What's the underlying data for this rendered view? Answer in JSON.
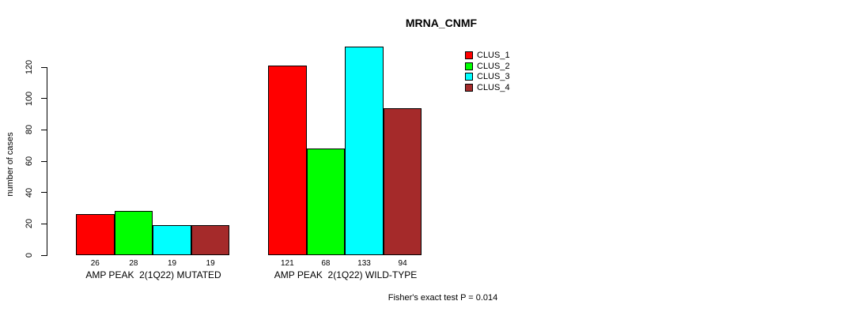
{
  "chart_data": {
    "type": "bar",
    "title": "MRNA_CNMF",
    "ylabel": "number of cases",
    "xlabel": "",
    "categories": [
      "AMP PEAK  2(1Q22) MUTATED",
      "AMP PEAK  2(1Q22) WILD-TYPE"
    ],
    "series": [
      {
        "name": "CLUS_1",
        "color": "#ff0000",
        "values": [
          26,
          121
        ]
      },
      {
        "name": "CLUS_2",
        "color": "#00ff00",
        "values": [
          28,
          68
        ]
      },
      {
        "name": "CLUS_3",
        "color": "#00ffff",
        "values": [
          19,
          133
        ]
      },
      {
        "name": "CLUS_4",
        "color": "#a52a2a",
        "values": [
          19,
          94
        ]
      }
    ],
    "bar_value_labels": [
      [
        "26",
        "28",
        "19",
        "19"
      ],
      [
        "121",
        "68",
        "133",
        "94"
      ]
    ],
    "yticks": [
      0,
      20,
      40,
      60,
      80,
      100,
      120
    ],
    "ylim": [
      0,
      140
    ],
    "grid": false,
    "legend_position": "top-right",
    "annotation": "Fisher's exact test P = 0.014",
    "axis_color": "#000000",
    "background_color": "#ffffff"
  }
}
